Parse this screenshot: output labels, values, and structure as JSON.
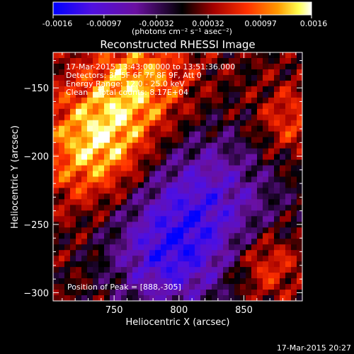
{
  "chart_data": {
    "type": "heatmap",
    "title": "Reconstructed RHESSI Image",
    "xlabel": "Heliocentric X (arcsec)",
    "ylabel": "Heliocentric Y (arcsec)",
    "xlim": [
      703,
      895
    ],
    "ylim": [
      -306,
      -124
    ],
    "x_ticks": [
      750,
      800,
      850
    ],
    "y_ticks": [
      -300,
      -250,
      -200,
      -150
    ],
    "colorbar": {
      "range": [
        -0.0016,
        0.0016
      ],
      "tick_values": [
        -0.0016,
        -0.00097,
        -0.00032,
        0.00032,
        0.00097,
        0.0016
      ],
      "tick_labels": [
        "-0.0016",
        "-0.00097",
        "-0.00032",
        "0.00032",
        "0.00097",
        "0.0016"
      ],
      "unit_label": "(photons cm⁻² s⁻¹ asec⁻²)",
      "colormap": [
        "#0000ff",
        "#7a1fd6",
        "#000000",
        "#a30000",
        "#ff3300",
        "#ff8c00",
        "#ffff40",
        "#ffffff"
      ]
    },
    "annotations": [
      "17-Mar-2015 13:43:00.000 to 13:51:36.000",
      "Detectors: 3F 5F 6F 7F 8F 9F, Att 0",
      "Energy Range: 12.0 - 25.0 keV",
      "Clean    Total counts: 8.17E+04"
    ],
    "peak_label": "Position of Peak = [888,-305]",
    "footer_date": "17-Mar-2015 20:27"
  }
}
